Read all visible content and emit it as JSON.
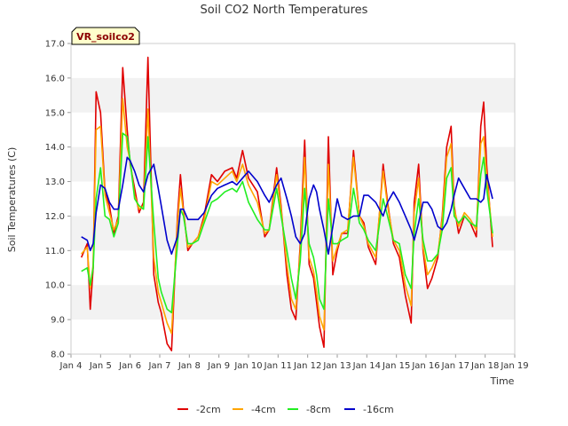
{
  "chart_data": {
    "type": "line",
    "title": "Soil CO2 North Temperatures",
    "xlabel": "Time",
    "ylabel": "Soil Temperatures (C)",
    "badge": "VR_soilco2",
    "ylim": [
      8.0,
      17.0
    ],
    "xlim": [
      4,
      19
    ],
    "y_ticks": [
      "8.0",
      "9.0",
      "10.0",
      "11.0",
      "12.0",
      "13.0",
      "14.0",
      "15.0",
      "16.0",
      "17.0"
    ],
    "x_ticks": [
      "Jan 4",
      "Jan 5",
      "Jan 6",
      "Jan 7",
      "Jan 8",
      "Jan 9",
      "Jan 10",
      "Jan 11",
      "Jan 12",
      "Jan 13",
      "Jan 14",
      "Jan 15",
      "Jan 16",
      "Jan 17",
      "Jan 18",
      "Jan 19"
    ],
    "grid": "horizontal bands",
    "legend_position": "bottom",
    "colors": {
      "-2cm": "#e00000",
      "-4cm": "#ffa500",
      "-8cm": "#22ee22",
      "-16cm": "#0000cc",
      "band": "#f2f2f2",
      "badge_bg": "#ffffcc"
    },
    "series": [
      {
        "name": "-2cm",
        "x": [
          4.35,
          4.55,
          4.65,
          4.75,
          4.85,
          5.0,
          5.15,
          5.3,
          5.45,
          5.6,
          5.75,
          5.9,
          6.0,
          6.15,
          6.3,
          6.45,
          6.6,
          6.8,
          6.95,
          7.05,
          7.25,
          7.4,
          7.6,
          7.7,
          7.8,
          7.95,
          8.1,
          8.3,
          8.5,
          8.75,
          8.95,
          9.2,
          9.45,
          9.6,
          9.8,
          10.0,
          10.3,
          10.55,
          10.7,
          10.95,
          11.1,
          11.3,
          11.45,
          11.6,
          11.75,
          11.9,
          12.05,
          12.2,
          12.3,
          12.4,
          12.55,
          12.7,
          12.85,
          13.0,
          13.15,
          13.35,
          13.55,
          13.75,
          13.9,
          14.05,
          14.3,
          14.55,
          14.7,
          14.9,
          15.1,
          15.3,
          15.5,
          15.6,
          15.75,
          15.9,
          16.05,
          16.2,
          16.4,
          16.55,
          16.7,
          16.85,
          16.95,
          17.1,
          17.3,
          17.5,
          17.7,
          17.85,
          17.95,
          18.05,
          18.25
        ],
        "values": [
          10.8,
          11.2,
          9.3,
          10.5,
          15.6,
          15.0,
          12.7,
          12.3,
          11.5,
          12.0,
          16.3,
          14.5,
          13.5,
          12.8,
          12.1,
          12.4,
          16.6,
          10.3,
          9.5,
          9.2,
          8.3,
          8.1,
          12.0,
          13.2,
          12.2,
          11.0,
          11.2,
          11.4,
          12.0,
          13.2,
          13.0,
          13.3,
          13.4,
          13.1,
          13.9,
          13.1,
          12.7,
          11.4,
          11.6,
          13.4,
          12.3,
          10.3,
          9.3,
          9.0,
          11.2,
          14.2,
          10.6,
          10.2,
          9.5,
          8.8,
          8.2,
          14.3,
          10.3,
          11.0,
          11.5,
          11.5,
          13.9,
          12.0,
          11.8,
          11.1,
          10.6,
          13.5,
          12.4,
          11.2,
          10.8,
          9.7,
          8.9,
          12.4,
          13.5,
          11.0,
          9.9,
          10.2,
          10.8,
          12.0,
          14.0,
          14.6,
          12.3,
          11.5,
          12.0,
          11.8,
          11.4,
          14.6,
          15.3,
          13.5,
          11.1
        ]
      },
      {
        "name": "-4cm",
        "x": [
          4.35,
          4.55,
          4.65,
          4.75,
          4.85,
          5.0,
          5.15,
          5.3,
          5.45,
          5.6,
          5.75,
          5.9,
          6.0,
          6.15,
          6.3,
          6.45,
          6.6,
          6.8,
          6.95,
          7.05,
          7.25,
          7.4,
          7.6,
          7.7,
          7.8,
          7.95,
          8.1,
          8.3,
          8.5,
          8.75,
          8.95,
          9.2,
          9.45,
          9.6,
          9.8,
          10.0,
          10.3,
          10.55,
          10.7,
          10.95,
          11.1,
          11.3,
          11.45,
          11.6,
          11.75,
          11.9,
          12.05,
          12.2,
          12.3,
          12.4,
          12.55,
          12.7,
          12.85,
          13.0,
          13.15,
          13.35,
          13.55,
          13.75,
          13.9,
          14.05,
          14.3,
          14.55,
          14.7,
          14.9,
          15.1,
          15.3,
          15.5,
          15.6,
          15.75,
          15.9,
          16.05,
          16.2,
          16.4,
          16.55,
          16.7,
          16.85,
          16.95,
          17.1,
          17.3,
          17.5,
          17.7,
          17.85,
          17.95,
          18.05,
          18.25
        ],
        "values": [
          10.9,
          11.1,
          9.9,
          10.6,
          14.5,
          14.6,
          12.6,
          12.1,
          11.6,
          11.9,
          15.4,
          14.0,
          13.6,
          12.6,
          12.2,
          12.3,
          15.1,
          10.8,
          9.8,
          9.5,
          8.9,
          8.6,
          11.8,
          12.8,
          12.1,
          11.1,
          11.2,
          11.4,
          11.9,
          13.0,
          12.9,
          13.1,
          13.3,
          13.0,
          13.5,
          12.9,
          12.4,
          11.5,
          11.6,
          13.2,
          12.2,
          10.6,
          9.6,
          9.3,
          11.0,
          13.7,
          10.8,
          10.4,
          9.8,
          9.1,
          8.7,
          13.5,
          10.7,
          11.1,
          11.5,
          11.6,
          13.7,
          12.0,
          11.7,
          11.2,
          10.8,
          13.3,
          12.3,
          11.3,
          11.0,
          10.0,
          9.4,
          12.1,
          13.1,
          11.1,
          10.3,
          10.5,
          10.9,
          11.9,
          13.7,
          14.1,
          12.2,
          11.7,
          12.1,
          11.9,
          11.6,
          14.1,
          14.3,
          13.2,
          11.4
        ]
      },
      {
        "name": "-8cm",
        "x": [
          4.35,
          4.55,
          4.65,
          4.75,
          4.85,
          5.0,
          5.15,
          5.3,
          5.45,
          5.6,
          5.75,
          5.9,
          6.0,
          6.15,
          6.3,
          6.45,
          6.6,
          6.8,
          6.95,
          7.05,
          7.25,
          7.4,
          7.6,
          7.7,
          7.8,
          7.95,
          8.1,
          8.3,
          8.5,
          8.75,
          8.95,
          9.2,
          9.45,
          9.6,
          9.8,
          10.0,
          10.3,
          10.55,
          10.7,
          10.95,
          11.1,
          11.3,
          11.45,
          11.6,
          11.75,
          11.9,
          12.05,
          12.2,
          12.3,
          12.4,
          12.55,
          12.7,
          12.85,
          13.0,
          13.15,
          13.35,
          13.55,
          13.75,
          13.9,
          14.05,
          14.3,
          14.55,
          14.7,
          14.9,
          15.1,
          15.3,
          15.5,
          15.6,
          15.75,
          15.9,
          16.05,
          16.2,
          16.4,
          16.55,
          16.7,
          16.85,
          16.95,
          17.1,
          17.3,
          17.5,
          17.7,
          17.85,
          17.95,
          18.05,
          18.25
        ],
        "values": [
          10.4,
          10.5,
          10.0,
          10.5,
          12.5,
          13.4,
          12.0,
          11.9,
          11.4,
          11.8,
          14.4,
          14.3,
          13.6,
          12.5,
          12.3,
          12.2,
          14.3,
          11.8,
          10.2,
          9.8,
          9.3,
          9.2,
          11.2,
          12.2,
          12.0,
          11.2,
          11.2,
          11.3,
          11.8,
          12.4,
          12.5,
          12.7,
          12.8,
          12.7,
          13.0,
          12.4,
          11.9,
          11.6,
          11.6,
          12.8,
          12.0,
          11.0,
          10.2,
          9.6,
          10.7,
          12.8,
          11.2,
          10.8,
          10.3,
          9.6,
          9.3,
          12.5,
          11.2,
          11.2,
          11.3,
          11.4,
          12.8,
          11.8,
          11.6,
          11.3,
          11.0,
          12.5,
          12.0,
          11.3,
          11.2,
          10.3,
          9.9,
          11.5,
          12.5,
          11.3,
          10.7,
          10.7,
          10.9,
          11.6,
          13.1,
          13.4,
          12.0,
          11.8,
          12.0,
          11.8,
          11.7,
          13.2,
          13.7,
          12.8,
          11.5
        ]
      },
      {
        "name": "-16cm",
        "x": [
          4.35,
          4.55,
          4.65,
          4.75,
          4.85,
          5.0,
          5.15,
          5.3,
          5.45,
          5.6,
          5.75,
          5.9,
          6.0,
          6.15,
          6.3,
          6.45,
          6.6,
          6.8,
          6.95,
          7.05,
          7.25,
          7.4,
          7.6,
          7.7,
          7.8,
          7.95,
          8.1,
          8.3,
          8.5,
          8.75,
          8.95,
          9.2,
          9.45,
          9.6,
          9.8,
          10.0,
          10.3,
          10.55,
          10.7,
          10.95,
          11.1,
          11.3,
          11.45,
          11.6,
          11.75,
          11.9,
          12.05,
          12.2,
          12.3,
          12.4,
          12.55,
          12.7,
          12.85,
          13.0,
          13.15,
          13.35,
          13.55,
          13.75,
          13.9,
          14.05,
          14.3,
          14.55,
          14.7,
          14.9,
          15.1,
          15.3,
          15.5,
          15.6,
          15.75,
          15.9,
          16.05,
          16.2,
          16.4,
          16.55,
          16.7,
          16.85,
          16.95,
          17.1,
          17.3,
          17.5,
          17.7,
          17.85,
          17.95,
          18.05,
          18.25
        ],
        "values": [
          11.4,
          11.3,
          11.0,
          11.2,
          12.1,
          12.9,
          12.8,
          12.4,
          12.2,
          12.2,
          12.9,
          13.7,
          13.6,
          13.3,
          12.9,
          12.7,
          13.2,
          13.5,
          12.8,
          12.3,
          11.3,
          10.9,
          11.4,
          12.2,
          12.2,
          11.9,
          11.9,
          11.9,
          12.1,
          12.6,
          12.8,
          12.9,
          13.0,
          12.9,
          13.1,
          13.3,
          13.0,
          12.6,
          12.4,
          12.9,
          13.1,
          12.5,
          12.0,
          11.4,
          11.2,
          11.5,
          12.5,
          12.9,
          12.7,
          12.2,
          11.6,
          10.9,
          11.7,
          12.5,
          12.0,
          11.9,
          12.0,
          12.0,
          12.6,
          12.6,
          12.4,
          12.0,
          12.4,
          12.7,
          12.4,
          12.0,
          11.6,
          11.3,
          11.8,
          12.4,
          12.4,
          12.2,
          11.7,
          11.6,
          11.8,
          12.2,
          12.6,
          13.1,
          12.8,
          12.5,
          12.5,
          12.4,
          12.5,
          13.2,
          12.5
        ]
      }
    ]
  }
}
